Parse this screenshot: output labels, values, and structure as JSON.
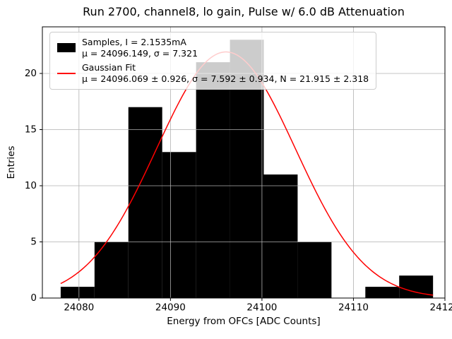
{
  "chart_data": {
    "type": "bar",
    "subtype": "histogram-with-gaussian-fit",
    "title": "Run 2700, channel8, lo gain, Pulse w/ 6.0 dB Attenuation",
    "xlabel": "Energy from OFCs [ADC Counts]",
    "ylabel": "Entries",
    "xlim": [
      24076,
      24120
    ],
    "ylim": [
      0,
      24.15
    ],
    "xticks": [
      24080,
      24090,
      24100,
      24110,
      24120
    ],
    "xtick_labels": [
      "24080",
      "24090",
      "24100",
      "24110",
      "24120"
    ],
    "yticks": [
      0,
      5,
      10,
      15,
      20
    ],
    "ytick_labels": [
      "0",
      "5",
      "10",
      "15",
      "20"
    ],
    "grid": true,
    "grid_color": "#b0b0b0",
    "bar_color": "#000000",
    "bin_edges": [
      24078.0,
      24081.7,
      24085.4,
      24089.1,
      24092.8,
      24096.5,
      24100.2,
      24103.9,
      24107.6,
      24111.3,
      24115.0,
      24118.7
    ],
    "counts": [
      1,
      5,
      17,
      13,
      21,
      23,
      11,
      5,
      0,
      1,
      2
    ],
    "fit": {
      "mu": 24096.069,
      "sigma": 7.592,
      "N": 21.915,
      "color": "#ff0000"
    },
    "legend_position": "upper-left"
  },
  "legend": {
    "samples": {
      "line1": "Samples, I = 2.1535mA",
      "line2": "μ = 24096.149, σ = 7.321"
    },
    "fit": {
      "line1": "Gaussian Fit",
      "line2": "μ = 24096.069 ± 0.926, σ = 7.592 ± 0.934, N = 21.915 ± 2.318"
    }
  }
}
